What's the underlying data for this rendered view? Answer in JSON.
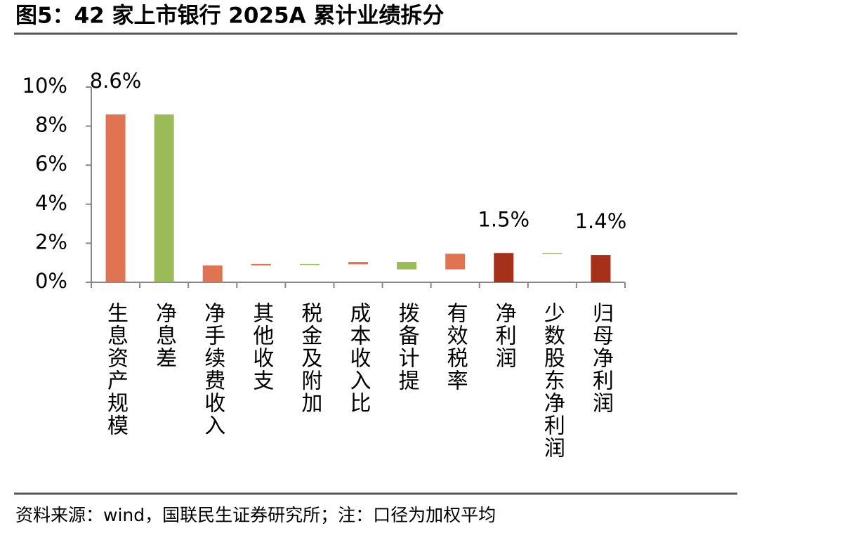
{
  "header": {
    "title": "图5：42 家上市银行 2025A 累计业绩拆分"
  },
  "chart_data": {
    "type": "waterfall",
    "categories": [
      "生息资产规模",
      "净息差",
      "净手续费收入",
      "其他收支",
      "税金及附加",
      "成本收入比",
      "拨备计提",
      "有效税率",
      "净利润",
      "少数股东净利润",
      "归母净利润"
    ],
    "values": [
      8.6,
      -8.6,
      0.86,
      0.08,
      -0.02,
      0.12,
      -0.38,
      0.8,
      1.5,
      -0.05,
      1.4
    ],
    "totals": [
      false,
      false,
      false,
      false,
      false,
      false,
      false,
      false,
      true,
      false,
      true
    ],
    "value_labels": [
      "8.6%",
      null,
      null,
      null,
      null,
      null,
      null,
      null,
      "1.5%",
      null,
      "1.4%"
    ],
    "colors": [
      "#e07352",
      "#9bbb59",
      "#e07352",
      "#e07352",
      "#9bbb59",
      "#e07352",
      "#9bbb59",
      "#e07352",
      "#a5311a",
      "#9bbb59",
      "#a5311a"
    ],
    "ylim": [
      0,
      10
    ],
    "yticks": [
      {
        "value": 0,
        "label": "0%"
      },
      {
        "value": 2,
        "label": "2%"
      },
      {
        "value": 4,
        "label": "4%"
      },
      {
        "value": 6,
        "label": "6%"
      },
      {
        "value": 8,
        "label": "8%"
      },
      {
        "value": 10,
        "label": "10%"
      }
    ]
  },
  "footer": {
    "source": "资料来源：wind，国联民生证券研究所；注：口径为加权平均"
  }
}
